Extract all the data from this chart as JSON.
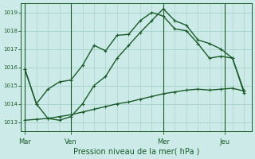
{
  "title": "Pression niveau de la mer( hPa )",
  "background_color": "#cceae7",
  "grid_color": "#aad4cc",
  "line_color": "#1a5c2a",
  "ylim": [
    1012.5,
    1019.5
  ],
  "yticks": [
    1013,
    1014,
    1015,
    1016,
    1017,
    1018,
    1019
  ],
  "day_labels": [
    "Mar",
    "Ven",
    "Mer",
    "Jeu"
  ],
  "day_positions": [
    0,
    24,
    72,
    104
  ],
  "xlim": [
    -2,
    118
  ],
  "line1_x": [
    0,
    6,
    12,
    18,
    24,
    30,
    36,
    42,
    48,
    54,
    60,
    66,
    72,
    78,
    84,
    90,
    96,
    102,
    108,
    114
  ],
  "line1_y": [
    1015.9,
    1014.0,
    1014.8,
    1015.2,
    1015.3,
    1016.1,
    1017.2,
    1016.9,
    1017.75,
    1017.8,
    1018.55,
    1019.0,
    1018.8,
    1018.1,
    1018.0,
    1017.3,
    1016.5,
    1016.6,
    1016.5,
    1014.7
  ],
  "line2_x": [
    0,
    6,
    12,
    18,
    24,
    30,
    36,
    42,
    48,
    54,
    60,
    66,
    72,
    78,
    84,
    90,
    96,
    102,
    108,
    114
  ],
  "line2_y": [
    1015.9,
    1014.0,
    1013.2,
    1013.1,
    1013.3,
    1014.0,
    1015.0,
    1015.5,
    1016.5,
    1017.2,
    1017.9,
    1018.55,
    1019.2,
    1018.55,
    1018.3,
    1017.5,
    1017.3,
    1017.0,
    1016.5,
    1014.6
  ],
  "line3_x": [
    0,
    6,
    12,
    18,
    24,
    30,
    36,
    42,
    48,
    54,
    60,
    66,
    72,
    78,
    84,
    90,
    96,
    102,
    108,
    114
  ],
  "line3_y": [
    1013.1,
    1013.15,
    1013.2,
    1013.3,
    1013.4,
    1013.55,
    1013.7,
    1013.85,
    1014.0,
    1014.1,
    1014.25,
    1014.4,
    1014.55,
    1014.65,
    1014.75,
    1014.8,
    1014.75,
    1014.8,
    1014.85,
    1014.7
  ]
}
